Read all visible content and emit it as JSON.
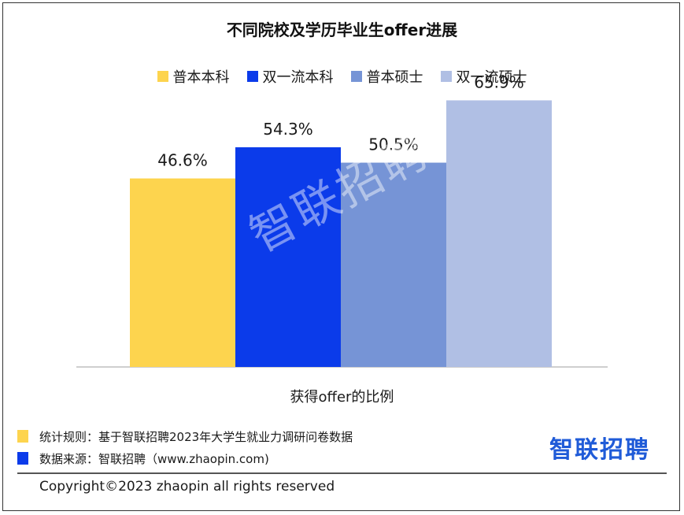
{
  "title": "不同院校及学历毕业生offer进展",
  "legend": [
    {
      "label": "普本本科",
      "color": "#FDD44E"
    },
    {
      "label": "双一流本科",
      "color": "#0B3BEA"
    },
    {
      "label": "普本硕士",
      "color": "#7694D6"
    },
    {
      "label": "双一流硕士",
      "color": "#B0BFE4"
    }
  ],
  "chart_data": {
    "type": "bar",
    "categories": [
      "获得offer的比例"
    ],
    "series": [
      {
        "name": "普本本科",
        "values": [
          46.6
        ],
        "label": "46.6%",
        "color": "#FDD44E"
      },
      {
        "name": "双一流本科",
        "values": [
          54.3
        ],
        "label": "54.3%",
        "color": "#0B3BEA"
      },
      {
        "name": "普本硕士",
        "values": [
          50.5
        ],
        "label": "50.5%",
        "color": "#7694D6"
      },
      {
        "name": "双一流硕士",
        "values": [
          65.9
        ],
        "label": "65.9%",
        "color": "#B0BFE4"
      }
    ],
    "ylim": [
      0,
      80
    ],
    "grid": false,
    "legend_position": "top"
  },
  "watermark": "智联招聘",
  "notes": [
    {
      "text": "统计规则：基于智联招聘2023年大学生就业力调研问卷数据",
      "color": "#FDD44E"
    },
    {
      "text": "数据来源：智联招聘（www.zhaopin.com)",
      "color": "#0B3BEA"
    }
  ],
  "brand": "智联招聘",
  "copyright": "Copyright©2023 zhaopin all rights reserved"
}
